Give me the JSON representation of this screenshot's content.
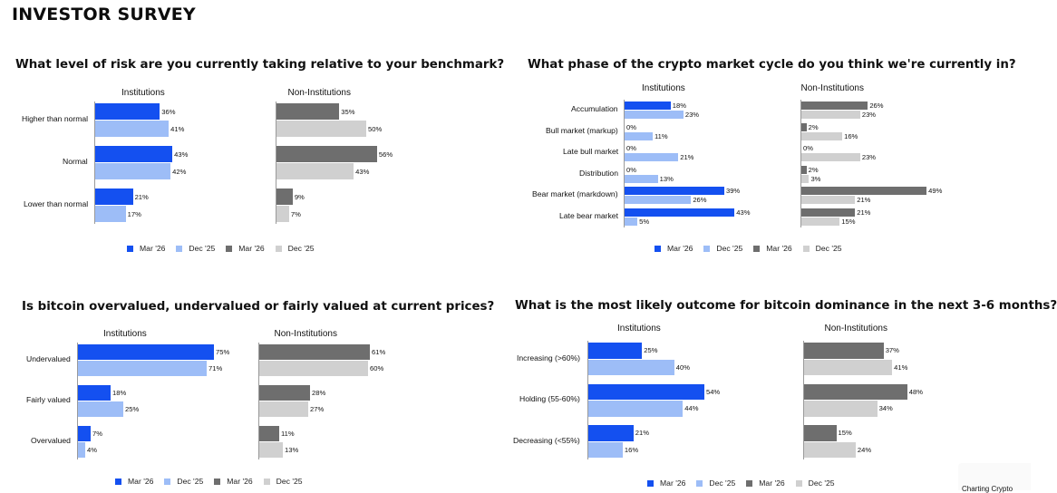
{
  "page_title": "INVESTOR SURVEY",
  "colors": {
    "inst_mar": "#1450f0",
    "inst_dec": "#9dbdf7",
    "non_mar": "#6e6e6e",
    "non_dec": "#d0d0d0"
  },
  "chart_data": [
    {
      "type": "bar",
      "orientation": "horizontal",
      "title": "What level of risk are you currently taking relative to your benchmark?",
      "categories": [
        "Higher than normal",
        "Normal",
        "Lower than normal"
      ],
      "groups": [
        "Institutions",
        "Non-Institutions"
      ],
      "series": [
        {
          "group": "Institutions",
          "name": "Mar '26",
          "color_key": "inst_mar",
          "values": [
            36,
            43,
            21
          ]
        },
        {
          "group": "Institutions",
          "name": "Dec '25",
          "color_key": "inst_dec",
          "values": [
            41,
            42,
            17
          ]
        },
        {
          "group": "Non-Institutions",
          "name": "Mar '26",
          "color_key": "non_mar",
          "values": [
            35,
            56,
            9
          ]
        },
        {
          "group": "Non-Institutions",
          "name": "Dec '25",
          "color_key": "non_dec",
          "values": [
            50,
            43,
            7
          ]
        }
      ],
      "value_suffix": "%",
      "legend": [
        "Mar '26",
        "Dec '25",
        "Mar '26",
        "Dec '25"
      ],
      "xlim": [
        0,
        100
      ]
    },
    {
      "type": "bar",
      "orientation": "horizontal",
      "title": "What phase of the crypto market cycle do you think we're currently in?",
      "categories": [
        "Accumulation",
        "Bull market (markup)",
        "Late bull market",
        "Distribution",
        "Bear market (markdown)",
        "Late bear market"
      ],
      "groups": [
        "Institutions",
        "Non-Institutions"
      ],
      "series": [
        {
          "group": "Institutions",
          "name": "Mar '26",
          "color_key": "inst_mar",
          "values": [
            18,
            0,
            0,
            0,
            39,
            43
          ]
        },
        {
          "group": "Institutions",
          "name": "Dec '25",
          "color_key": "inst_dec",
          "values": [
            23,
            11,
            21,
            13,
            26,
            5
          ]
        },
        {
          "group": "Non-Institutions",
          "name": "Mar '26",
          "color_key": "non_mar",
          "values": [
            26,
            2,
            0,
            2,
            49,
            21
          ]
        },
        {
          "group": "Non-Institutions",
          "name": "Dec '25",
          "color_key": "non_dec",
          "values": [
            23,
            16,
            23,
            3,
            21,
            15
          ]
        }
      ],
      "value_suffix": "%",
      "legend": [
        "Mar '26",
        "Dec '25",
        "Mar '26",
        "Dec '25"
      ],
      "xlim": [
        0,
        100
      ]
    },
    {
      "type": "bar",
      "orientation": "horizontal",
      "title": "Is bitcoin overvalued, undervalued or fairly valued at current prices?",
      "categories": [
        "Undervalued",
        "Fairly valued",
        "Overvalued"
      ],
      "groups": [
        "Institutions",
        "Non-Institutions"
      ],
      "series": [
        {
          "group": "Institutions",
          "name": "Mar '26",
          "color_key": "inst_mar",
          "values": [
            75,
            18,
            7
          ]
        },
        {
          "group": "Institutions",
          "name": "Dec '25",
          "color_key": "inst_dec",
          "values": [
            71,
            25,
            4
          ]
        },
        {
          "group": "Non-Institutions",
          "name": "Mar '26",
          "color_key": "non_mar",
          "values": [
            61,
            28,
            11
          ]
        },
        {
          "group": "Non-Institutions",
          "name": "Dec '25",
          "color_key": "non_dec",
          "values": [
            60,
            27,
            13
          ]
        }
      ],
      "value_suffix": "%",
      "legend": [
        "Mar '26",
        "Dec '25",
        "Mar '26",
        "Dec '25"
      ],
      "xlim": [
        0,
        100
      ]
    },
    {
      "type": "bar",
      "orientation": "horizontal",
      "title": "What is the most likely outcome for bitcoin dominance in the next 3-6 months?",
      "categories": [
        "Increasing (>60%)",
        "Holding (55-60%)",
        "Decreasing (<55%)"
      ],
      "groups": [
        "Institutions",
        "Non-Institutions"
      ],
      "series": [
        {
          "group": "Institutions",
          "name": "Mar '26",
          "color_key": "inst_mar",
          "values": [
            25,
            54,
            21
          ]
        },
        {
          "group": "Institutions",
          "name": "Dec '25",
          "color_key": "inst_dec",
          "values": [
            40,
            44,
            16
          ]
        },
        {
          "group": "Non-Institutions",
          "name": "Mar '26",
          "color_key": "non_mar",
          "values": [
            37,
            48,
            15
          ]
        },
        {
          "group": "Non-Institutions",
          "name": "Dec '25",
          "color_key": "non_dec",
          "values": [
            41,
            34,
            24
          ]
        }
      ],
      "value_suffix": "%",
      "legend": [
        "Mar '26",
        "Dec '25",
        "Mar '26",
        "Dec '25"
      ],
      "xlim": [
        0,
        100
      ]
    }
  ],
  "source_badge": "Charting Crypto"
}
